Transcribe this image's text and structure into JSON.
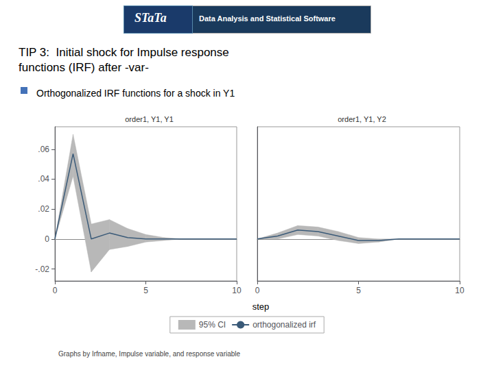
{
  "title": [
    "TIP 3:  Initial shock for Impulse response",
    "functions (IRF) after -var-"
  ],
  "subtitle": "Orthogonalized IRF functions for a shock in Y1",
  "xlabel": "step",
  "annotations": [
    "STaTa",
    "Data Analysis and Statistical Software",
    "Graphs by Irfname, Impulse variable, and response variable"
  ],
  "legend": "bottom",
  "chart_data": [
    {
      "type": "line",
      "title": "order1, Y1, Y1",
      "x": [
        0,
        1,
        2,
        3,
        4,
        5,
        6,
        7,
        8,
        9,
        10
      ],
      "xlim": [
        0,
        10
      ],
      "xticks": [
        0,
        5,
        10
      ],
      "ylim": [
        -0.028,
        0.075
      ],
      "yticks": [
        {
          "value": 0.06,
          "label": ".06"
        },
        {
          "value": 0.04,
          "label": ".04"
        },
        {
          "value": 0.02,
          "label": ".02"
        },
        0,
        {
          "value": -0.02,
          "label": "-.02"
        }
      ],
      "grid": false,
      "series": [
        {
          "name": "95% CI",
          "type": "area",
          "color": "#b8b8b8",
          "lower": [
            0.0,
            0.042,
            -0.022,
            -0.007,
            -0.005,
            -0.002,
            -0.001,
            0.0,
            0.0,
            0.0,
            0.0
          ],
          "upper": [
            0.0,
            0.07,
            0.01,
            0.013,
            0.007,
            0.003,
            0.001,
            0.0,
            0.0,
            0.0,
            0.0
          ]
        },
        {
          "name": "orthogonalized irf",
          "type": "line",
          "color": "#3a5a78",
          "values": [
            0.0,
            0.057,
            0.0,
            0.004,
            0.001,
            0.0,
            0.0,
            0.0,
            0.0,
            0.0,
            0.0
          ]
        }
      ]
    },
    {
      "type": "line",
      "title": "order1, Y1, Y2",
      "x": [
        0,
        1,
        2,
        3,
        4,
        5,
        6,
        7,
        8,
        9,
        10
      ],
      "xlim": [
        0,
        10
      ],
      "xticks": [
        0,
        5,
        10
      ],
      "ylim": [
        -0.028,
        0.075
      ],
      "tick_labels": "x",
      "grid": false,
      "series": [
        {
          "name": "95% CI",
          "type": "area",
          "color": "#b8b8b8",
          "lower": [
            0.0,
            0.0,
            0.003,
            0.002,
            -0.001,
            -0.003,
            -0.002,
            0.0,
            0.0,
            0.0,
            0.0
          ],
          "upper": [
            0.0,
            0.004,
            0.009,
            0.008,
            0.005,
            0.001,
            0.0,
            0.0,
            0.0,
            0.0,
            0.0
          ]
        },
        {
          "name": "orthogonalized irf",
          "type": "line",
          "color": "#3a5a78",
          "values": [
            0.0,
            0.002,
            0.006,
            0.005,
            0.002,
            -0.001,
            -0.001,
            0.0,
            0.0,
            0.0,
            0.0
          ]
        }
      ]
    }
  ]
}
